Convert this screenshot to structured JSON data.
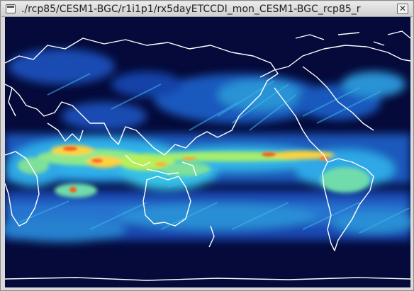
{
  "window": {
    "title": "./rcp85/CESM1-BGC/r1i1p1/rx5dayETCCDI_mon_CESM1-BGC_rcp85_r",
    "close_glyph": "✕"
  },
  "map": {
    "projection": "equirectangular",
    "background_color": "#050a3a",
    "coastline_color": "#ffffff",
    "colormap": [
      "#0a1a6e",
      "#1e5ad2",
      "#2aa8e8",
      "#5fe0d0",
      "#c8f04a",
      "#ffd23a",
      "#ff5a1e",
      "#d21a00"
    ]
  }
}
